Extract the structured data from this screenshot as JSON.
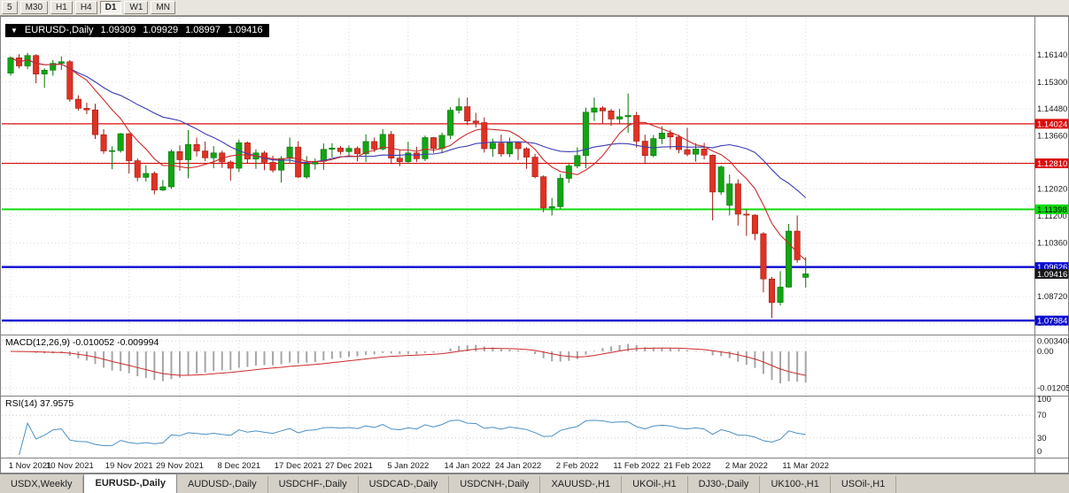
{
  "toolbar": {
    "timeframes": [
      {
        "label": "5",
        "active": false
      },
      {
        "label": "M30",
        "active": false
      },
      {
        "label": "H1",
        "active": false
      },
      {
        "label": "H4",
        "active": false
      },
      {
        "label": "D1",
        "active": true
      },
      {
        "label": "W1",
        "active": false
      },
      {
        "label": "MN",
        "active": false
      }
    ]
  },
  "chart": {
    "title": {
      "symbol": "EURUSD-,Daily",
      "open": "1.09309",
      "high": "1.09929",
      "low": "1.08997",
      "close": "1.09416"
    },
    "price_axis": {
      "labels": [
        "1.16140",
        "1.15300",
        "1.14480",
        "1.13660",
        "1.12840",
        "1.12020",
        "1.11200",
        "1.10360",
        "1.09540",
        "1.08720",
        "1.07900"
      ]
    },
    "levels": [
      {
        "price": 1.14024,
        "label": "1.14024",
        "color": "#dd0b0b",
        "text_color": "#ffffff",
        "width": 1.2
      },
      {
        "price": 1.1281,
        "label": "1.12810",
        "color": "#dd0b0b",
        "text_color": "#ffffff",
        "width": 1.2
      },
      {
        "price": 1.11398,
        "label": "1.11398",
        "color": "#0ddd0d",
        "text_color": "#000000",
        "width": 2
      },
      {
        "price": 1.09626,
        "label": "1.09626",
        "color": "#0b0bd0",
        "text_color": "#ffffff",
        "width": 2.4
      },
      {
        "price": 1.07984,
        "label": "1.07984",
        "color": "#0b0bd0",
        "text_color": "#ffffff",
        "width": 2.4
      }
    ],
    "current_price": {
      "price": 1.09416,
      "label": "1.09416",
      "color": "#17171b",
      "text_color": "#ffffff"
    },
    "colors": {
      "up": "#12a512",
      "up_border": "#067406",
      "down": "#e03224",
      "down_border": "#9c1c12",
      "ma_fast": "#cc2a2a",
      "ma_slow": "#3c3cb4",
      "macd_hist": "#a6a6a6",
      "macd_signal": "#cc2a2a",
      "rsi": "#4a8fc4",
      "grid": "#d9d9d9",
      "axis_text": "#1a1a1a"
    }
  },
  "chart_data": {
    "type": "candlestick",
    "symbol": "EURUSD-,Daily",
    "ohlc_display": {
      "open": 1.09309,
      "high": 1.09929,
      "low": 1.08997,
      "close": 1.09416
    },
    "x_ticks": [
      {
        "i": 0,
        "label": "1 Nov 2021"
      },
      {
        "i": 7,
        "label": "10 Nov 2021"
      },
      {
        "i": 14,
        "label": "19 Nov 2021"
      },
      {
        "i": 20,
        "label": "29 Nov 2021"
      },
      {
        "i": 27,
        "label": "8 Dec 2021"
      },
      {
        "i": 34,
        "label": "17 Dec 2021"
      },
      {
        "i": 40,
        "label": "27 Dec 2021"
      },
      {
        "i": 47,
        "label": "5 Jan 2022"
      },
      {
        "i": 54,
        "label": "14 Jan 2022"
      },
      {
        "i": 60,
        "label": "24 Jan 2022"
      },
      {
        "i": 67,
        "label": "2 Feb 2022"
      },
      {
        "i": 74,
        "label": "11 Feb 2022"
      },
      {
        "i": 80,
        "label": "21 Feb 2022"
      },
      {
        "i": 87,
        "label": "2 Mar 2022"
      },
      {
        "i": 94,
        "label": "11 Mar 2022"
      }
    ],
    "candles": [
      [
        1.1558,
        1.161,
        1.155,
        1.1605
      ],
      [
        1.1605,
        1.1616,
        1.1572,
        1.158
      ],
      [
        1.158,
        1.162,
        1.157,
        1.1612
      ],
      [
        1.1612,
        1.1616,
        1.1527,
        1.1555
      ],
      [
        1.1555,
        1.1573,
        1.1513,
        1.1567
      ],
      [
        1.1567,
        1.1598,
        1.155,
        1.1588
      ],
      [
        1.1588,
        1.1609,
        1.1568,
        1.1593
      ],
      [
        1.1593,
        1.1598,
        1.147,
        1.1478
      ],
      [
        1.1478,
        1.149,
        1.1443,
        1.145
      ],
      [
        1.145,
        1.1467,
        1.1432,
        1.1445
      ],
      [
        1.1445,
        1.1464,
        1.1356,
        1.1369
      ],
      [
        1.1369,
        1.1386,
        1.131,
        1.1319
      ],
      [
        1.1319,
        1.1333,
        1.1263,
        1.132
      ],
      [
        1.132,
        1.1374,
        1.1314,
        1.1372
      ],
      [
        1.1372,
        1.1374,
        1.125,
        1.1289
      ],
      [
        1.1289,
        1.1296,
        1.1226,
        1.1238
      ],
      [
        1.1238,
        1.1275,
        1.1225,
        1.125
      ],
      [
        1.125,
        1.1256,
        1.1186,
        1.1199
      ],
      [
        1.1199,
        1.123,
        1.1196,
        1.1209
      ],
      [
        1.1209,
        1.1323,
        1.1203,
        1.1317
      ],
      [
        1.1317,
        1.1336,
        1.1258,
        1.1292
      ],
      [
        1.1292,
        1.1383,
        1.1235,
        1.1339
      ],
      [
        1.1339,
        1.136,
        1.1302,
        1.1319
      ],
      [
        1.1319,
        1.1348,
        1.1288,
        1.1298
      ],
      [
        1.1298,
        1.1334,
        1.1266,
        1.1313
      ],
      [
        1.1313,
        1.132,
        1.1267,
        1.1285
      ],
      [
        1.1285,
        1.129,
        1.1228,
        1.1266
      ],
      [
        1.1266,
        1.1354,
        1.1254,
        1.1344
      ],
      [
        1.1344,
        1.1348,
        1.128,
        1.1294
      ],
      [
        1.1294,
        1.1324,
        1.1264,
        1.1313
      ],
      [
        1.1313,
        1.1319,
        1.126,
        1.1284
      ],
      [
        1.1284,
        1.1304,
        1.1253,
        1.126
      ],
      [
        1.126,
        1.1303,
        1.1222,
        1.1296
      ],
      [
        1.1296,
        1.136,
        1.128,
        1.1331
      ],
      [
        1.1331,
        1.1349,
        1.1236,
        1.1239
      ],
      [
        1.1239,
        1.1303,
        1.1234,
        1.1279
      ],
      [
        1.1279,
        1.1296,
        1.1262,
        1.1287
      ],
      [
        1.1287,
        1.1342,
        1.1261,
        1.1324
      ],
      [
        1.1324,
        1.1343,
        1.1299,
        1.1328
      ],
      [
        1.1328,
        1.1334,
        1.1308,
        1.1317
      ],
      [
        1.1317,
        1.1336,
        1.1304,
        1.1327
      ],
      [
        1.1327,
        1.1333,
        1.1287,
        1.131
      ],
      [
        1.131,
        1.137,
        1.1285,
        1.1348
      ],
      [
        1.1348,
        1.136,
        1.1316,
        1.1325
      ],
      [
        1.1325,
        1.1386,
        1.1321,
        1.137
      ],
      [
        1.137,
        1.138,
        1.1279,
        1.1297
      ],
      [
        1.1297,
        1.1324,
        1.1272,
        1.1286
      ],
      [
        1.1286,
        1.1347,
        1.128,
        1.1313
      ],
      [
        1.1313,
        1.1332,
        1.1285,
        1.1295
      ],
      [
        1.1295,
        1.1366,
        1.1288,
        1.136
      ],
      [
        1.136,
        1.1362,
        1.1313,
        1.1327
      ],
      [
        1.1327,
        1.1375,
        1.1314,
        1.1367
      ],
      [
        1.1367,
        1.1453,
        1.1355,
        1.1444
      ],
      [
        1.1444,
        1.1482,
        1.1434,
        1.1455
      ],
      [
        1.1455,
        1.1483,
        1.1398,
        1.1411
      ],
      [
        1.1411,
        1.1436,
        1.1391,
        1.1406
      ],
      [
        1.1406,
        1.1422,
        1.1314,
        1.1326
      ],
      [
        1.1326,
        1.1357,
        1.1301,
        1.1343
      ],
      [
        1.1343,
        1.1369,
        1.1301,
        1.131
      ],
      [
        1.131,
        1.136,
        1.13,
        1.1344
      ],
      [
        1.1344,
        1.1348,
        1.1291,
        1.1326
      ],
      [
        1.1326,
        1.1331,
        1.1264,
        1.13
      ],
      [
        1.13,
        1.131,
        1.1235,
        1.124
      ],
      [
        1.124,
        1.1244,
        1.1131,
        1.1144
      ],
      [
        1.1144,
        1.1175,
        1.1121,
        1.1148
      ],
      [
        1.1148,
        1.1248,
        1.1141,
        1.1235
      ],
      [
        1.1235,
        1.1279,
        1.1221,
        1.1273
      ],
      [
        1.1273,
        1.133,
        1.1266,
        1.1305
      ],
      [
        1.1305,
        1.1452,
        1.1266,
        1.1438
      ],
      [
        1.1438,
        1.1483,
        1.1411,
        1.1451
      ],
      [
        1.1451,
        1.1456,
        1.1402,
        1.1442
      ],
      [
        1.1442,
        1.1448,
        1.1396,
        1.1417
      ],
      [
        1.1417,
        1.1448,
        1.1403,
        1.1424
      ],
      [
        1.1424,
        1.1495,
        1.1375,
        1.1428
      ],
      [
        1.1428,
        1.1439,
        1.1329,
        1.1349
      ],
      [
        1.1349,
        1.1369,
        1.1279,
        1.1305
      ],
      [
        1.1305,
        1.1368,
        1.13,
        1.1357
      ],
      [
        1.1357,
        1.1395,
        1.134,
        1.1374
      ],
      [
        1.1374,
        1.1384,
        1.1324,
        1.1362
      ],
      [
        1.1362,
        1.1369,
        1.1312,
        1.1323
      ],
      [
        1.1323,
        1.139,
        1.1303,
        1.1309
      ],
      [
        1.1309,
        1.1343,
        1.1286,
        1.1325
      ],
      [
        1.1325,
        1.1344,
        1.1293,
        1.1306
      ],
      [
        1.1306,
        1.1308,
        1.1106,
        1.1193
      ],
      [
        1.1193,
        1.1274,
        1.1184,
        1.127
      ],
      [
        1.1152,
        1.1247,
        1.1121,
        1.1218
      ],
      [
        1.1218,
        1.1232,
        1.109,
        1.1125
      ],
      [
        1.1125,
        1.1139,
        1.1058,
        1.1122
      ],
      [
        1.1122,
        1.1125,
        1.1045,
        1.1065
      ],
      [
        1.1065,
        1.107,
        1.0885,
        1.0926
      ],
      [
        1.0926,
        1.0932,
        1.0806,
        1.0854
      ],
      [
        1.0854,
        1.095,
        1.0845,
        1.0901
      ],
      [
        1.0901,
        1.1095,
        1.0899,
        1.1073
      ],
      [
        1.1073,
        1.1121,
        1.0976,
        1.0985
      ],
      [
        1.09309,
        1.09929,
        1.08997,
        1.09416
      ]
    ],
    "indicators": {
      "macd": {
        "label": "MACD(12,26,9)",
        "values": "-0.010052 -0.009994",
        "axis": [
          {
            "v": 0.003408,
            "label": "0.003408"
          },
          {
            "v": 0,
            "label": "0.00"
          },
          {
            "v": -0.01205,
            "label": "-0.01205"
          }
        ]
      },
      "rsi": {
        "label": "RSI(14)",
        "value": "37.9575",
        "axis": [
          {
            "v": 100,
            "label": "100"
          },
          {
            "v": 70,
            "label": "70"
          },
          {
            "v": 30,
            "label": "30"
          },
          {
            "v": 0,
            "label": "0"
          }
        ]
      }
    }
  },
  "tabs": [
    {
      "label": "USDX,Weekly",
      "active": false
    },
    {
      "label": "EURUSD-,Daily",
      "active": true
    },
    {
      "label": "AUDUSD-,Daily",
      "active": false
    },
    {
      "label": "USDCHF-,Daily",
      "active": false
    },
    {
      "label": "USDCAD-,Daily",
      "active": false
    },
    {
      "label": "USDCNH-,Daily",
      "active": false
    },
    {
      "label": "XAUUSD-,H1",
      "active": false
    },
    {
      "label": "UKOil-,H1",
      "active": false
    },
    {
      "label": "DJ30-,Daily",
      "active": false
    },
    {
      "label": "UK100-,H1",
      "active": false
    },
    {
      "label": "USOil-,H1",
      "active": false
    }
  ]
}
